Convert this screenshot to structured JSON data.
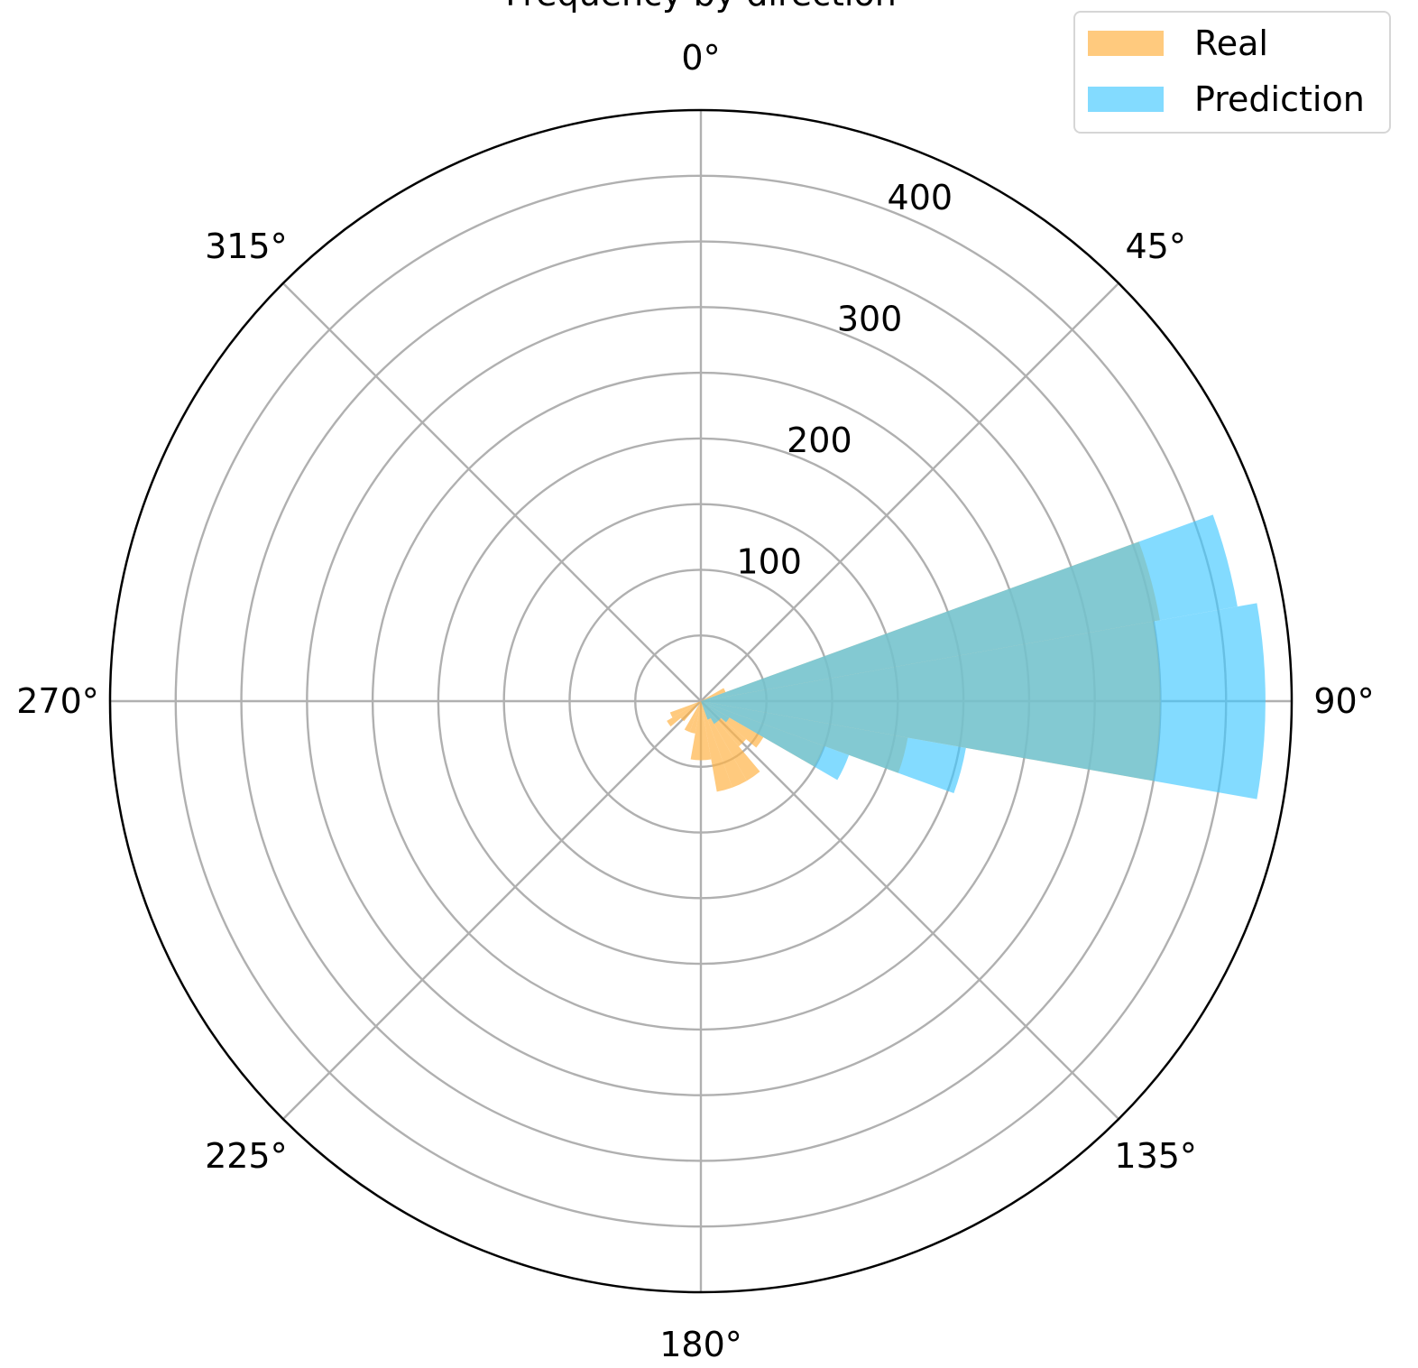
{
  "chart_data": {
    "type": "polar-bar",
    "title": "Frequency by direction",
    "theta_zero": "N",
    "theta_direction": "clockwise",
    "theta_ticks": [
      0,
      45,
      90,
      135,
      180,
      225,
      270,
      315
    ],
    "theta_tick_labels": [
      "0°",
      "45°",
      "90°",
      "135°",
      "180°",
      "225°",
      "270°",
      "315°"
    ],
    "rlim": [
      0,
      450
    ],
    "r_ticks": [
      100,
      200,
      300,
      400
    ],
    "r_tick_labels": [
      "100",
      "200",
      "300",
      "400"
    ],
    "r_grid_extra": [
      50,
      150,
      250,
      350
    ],
    "bin_width_deg": 10,
    "grid": true,
    "legend": {
      "position": "top-right"
    },
    "series": [
      {
        "name": "Real",
        "color": "#ffb347",
        "opacity": 0.7,
        "bins": [
          {
            "center": 65,
            "value": 20
          },
          {
            "center": 75,
            "value": 355
          },
          {
            "center": 85,
            "value": 350
          },
          {
            "center": 95,
            "value": 350
          },
          {
            "center": 105,
            "value": 160
          },
          {
            "center": 115,
            "value": 100
          },
          {
            "center": 125,
            "value": 55
          },
          {
            "center": 135,
            "value": 45
          },
          {
            "center": 145,
            "value": 70
          },
          {
            "center": 155,
            "value": 70
          },
          {
            "center": 165,
            "value": 70
          },
          {
            "center": 175,
            "value": 45
          },
          {
            "center": 185,
            "value": 45
          },
          {
            "center": 195,
            "value": 25
          },
          {
            "center": 205,
            "value": 25
          },
          {
            "center": 225,
            "value": 20
          },
          {
            "center": 235,
            "value": 30
          },
          {
            "center": 245,
            "value": 25
          }
        ]
      },
      {
        "name": "Prediction",
        "color": "#40c8ff",
        "opacity": 0.65,
        "bins": [
          {
            "center": 75,
            "value": 415
          },
          {
            "center": 85,
            "value": 430
          },
          {
            "center": 95,
            "value": 430
          },
          {
            "center": 105,
            "value": 205
          },
          {
            "center": 115,
            "value": 120
          },
          {
            "center": 125,
            "value": 25
          },
          {
            "center": 135,
            "value": 20
          },
          {
            "center": 145,
            "value": 20
          },
          {
            "center": 155,
            "value": 15
          }
        ]
      }
    ]
  }
}
